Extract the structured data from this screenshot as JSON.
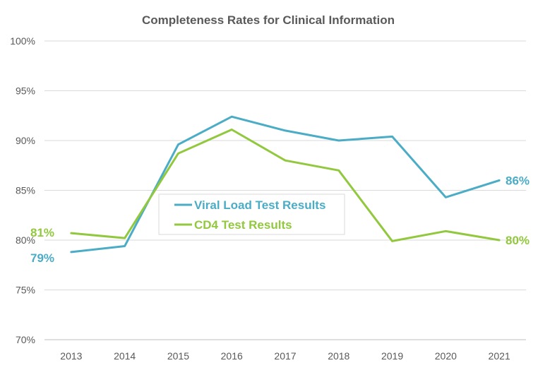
{
  "chart_data": {
    "type": "line",
    "title": "Completeness Rates for Clinical Information",
    "xlabel": "",
    "ylabel": "",
    "x": [
      "2013",
      "2014",
      "2015",
      "2016",
      "2017",
      "2018",
      "2019",
      "2020",
      "2021"
    ],
    "ylim": [
      70,
      100
    ],
    "yticks": [
      "70%",
      "75%",
      "80%",
      "85%",
      "90%",
      "95%",
      "100%"
    ],
    "grid": true,
    "legend_position": "center-left",
    "series": [
      {
        "name": "Viral Load Test Results",
        "color": "#4BACC6",
        "values": [
          78.8,
          79.4,
          89.6,
          92.4,
          91.0,
          90.0,
          90.4,
          84.3,
          86.0
        ],
        "start_label": "79%",
        "end_label": "86%"
      },
      {
        "name": "CD4 Test Results",
        "color": "#92C83E",
        "values": [
          80.7,
          80.2,
          88.7,
          91.1,
          88.0,
          87.0,
          79.9,
          80.9,
          80.0
        ],
        "start_label": "81%",
        "end_label": "80%"
      }
    ]
  }
}
